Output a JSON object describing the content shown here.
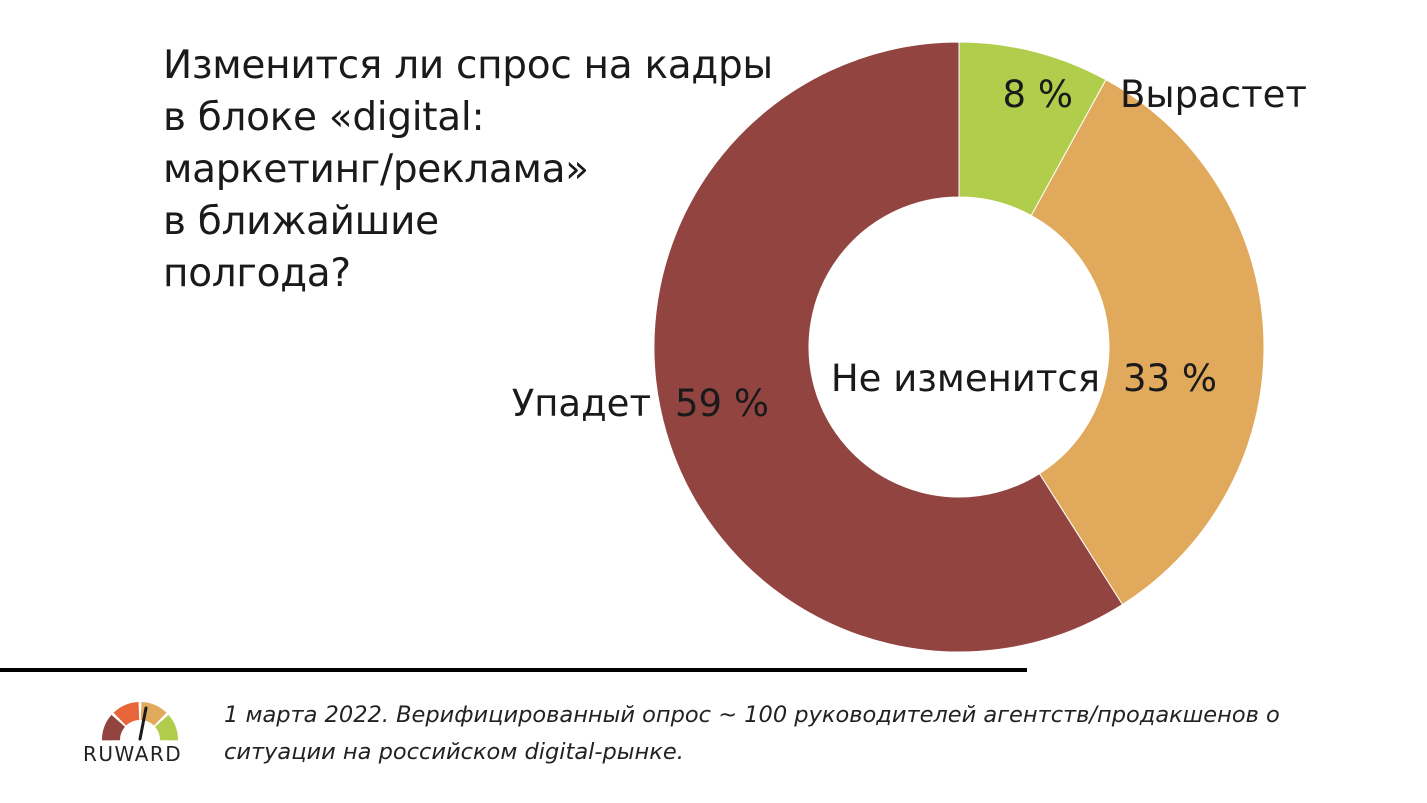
{
  "title_lines": [
    "Изменится ли спрос на кадры",
    "в блоке «digital:",
    "маркетинг/реклама»",
    "в ближайшие",
    "полгода?"
  ],
  "chart_data": {
    "type": "pie",
    "variant": "donut",
    "categories": [
      "Вырастет",
      "Не изменится",
      "Упадет"
    ],
    "values": [
      8,
      33,
      59
    ],
    "value_labels": [
      "8 %",
      "33 %",
      "59 %"
    ],
    "colors": [
      "#b1cd4c",
      "#e0a95b",
      "#914440"
    ]
  },
  "footnote_lines": [
    "1 марта 2022. Верифицированный опрос ~ 100 руководителей агентств/продакшенов о",
    "ситуации на российском digital-рынке."
  ],
  "logo": {
    "text": "RUWARD",
    "colors": [
      "#914440",
      "#e8653a",
      "#e0a95b",
      "#b1cd4c"
    ]
  }
}
